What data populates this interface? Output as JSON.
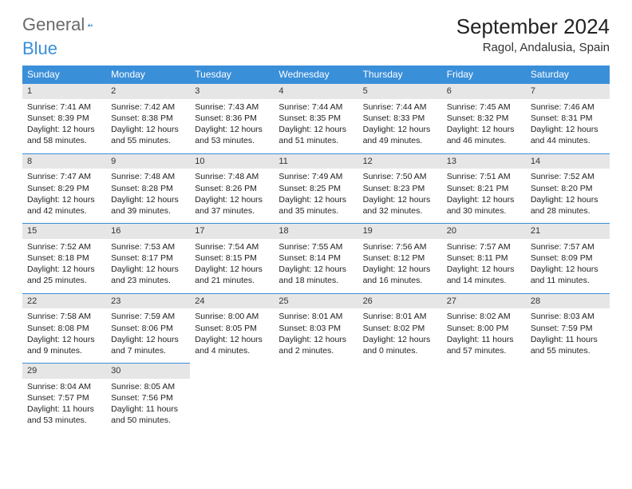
{
  "brand": {
    "part1": "General",
    "part2": "Blue"
  },
  "title": "September 2024",
  "location": "Ragol, Andalusia, Spain",
  "colors": {
    "header_bg": "#3a8fd9",
    "header_text": "#ffffff",
    "daynum_bg": "#e6e6e6",
    "border": "#3a8fd9",
    "logo_gray": "#6a6a6a",
    "logo_blue": "#3a8fd9"
  },
  "weekdays": [
    "Sunday",
    "Monday",
    "Tuesday",
    "Wednesday",
    "Thursday",
    "Friday",
    "Saturday"
  ],
  "weeks": [
    [
      {
        "n": "1",
        "sr": "7:41 AM",
        "ss": "8:39 PM",
        "dl": "12 hours and 58 minutes."
      },
      {
        "n": "2",
        "sr": "7:42 AM",
        "ss": "8:38 PM",
        "dl": "12 hours and 55 minutes."
      },
      {
        "n": "3",
        "sr": "7:43 AM",
        "ss": "8:36 PM",
        "dl": "12 hours and 53 minutes."
      },
      {
        "n": "4",
        "sr": "7:44 AM",
        "ss": "8:35 PM",
        "dl": "12 hours and 51 minutes."
      },
      {
        "n": "5",
        "sr": "7:44 AM",
        "ss": "8:33 PM",
        "dl": "12 hours and 49 minutes."
      },
      {
        "n": "6",
        "sr": "7:45 AM",
        "ss": "8:32 PM",
        "dl": "12 hours and 46 minutes."
      },
      {
        "n": "7",
        "sr": "7:46 AM",
        "ss": "8:31 PM",
        "dl": "12 hours and 44 minutes."
      }
    ],
    [
      {
        "n": "8",
        "sr": "7:47 AM",
        "ss": "8:29 PM",
        "dl": "12 hours and 42 minutes."
      },
      {
        "n": "9",
        "sr": "7:48 AM",
        "ss": "8:28 PM",
        "dl": "12 hours and 39 minutes."
      },
      {
        "n": "10",
        "sr": "7:48 AM",
        "ss": "8:26 PM",
        "dl": "12 hours and 37 minutes."
      },
      {
        "n": "11",
        "sr": "7:49 AM",
        "ss": "8:25 PM",
        "dl": "12 hours and 35 minutes."
      },
      {
        "n": "12",
        "sr": "7:50 AM",
        "ss": "8:23 PM",
        "dl": "12 hours and 32 minutes."
      },
      {
        "n": "13",
        "sr": "7:51 AM",
        "ss": "8:21 PM",
        "dl": "12 hours and 30 minutes."
      },
      {
        "n": "14",
        "sr": "7:52 AM",
        "ss": "8:20 PM",
        "dl": "12 hours and 28 minutes."
      }
    ],
    [
      {
        "n": "15",
        "sr": "7:52 AM",
        "ss": "8:18 PM",
        "dl": "12 hours and 25 minutes."
      },
      {
        "n": "16",
        "sr": "7:53 AM",
        "ss": "8:17 PM",
        "dl": "12 hours and 23 minutes."
      },
      {
        "n": "17",
        "sr": "7:54 AM",
        "ss": "8:15 PM",
        "dl": "12 hours and 21 minutes."
      },
      {
        "n": "18",
        "sr": "7:55 AM",
        "ss": "8:14 PM",
        "dl": "12 hours and 18 minutes."
      },
      {
        "n": "19",
        "sr": "7:56 AM",
        "ss": "8:12 PM",
        "dl": "12 hours and 16 minutes."
      },
      {
        "n": "20",
        "sr": "7:57 AM",
        "ss": "8:11 PM",
        "dl": "12 hours and 14 minutes."
      },
      {
        "n": "21",
        "sr": "7:57 AM",
        "ss": "8:09 PM",
        "dl": "12 hours and 11 minutes."
      }
    ],
    [
      {
        "n": "22",
        "sr": "7:58 AM",
        "ss": "8:08 PM",
        "dl": "12 hours and 9 minutes."
      },
      {
        "n": "23",
        "sr": "7:59 AM",
        "ss": "8:06 PM",
        "dl": "12 hours and 7 minutes."
      },
      {
        "n": "24",
        "sr": "8:00 AM",
        "ss": "8:05 PM",
        "dl": "12 hours and 4 minutes."
      },
      {
        "n": "25",
        "sr": "8:01 AM",
        "ss": "8:03 PM",
        "dl": "12 hours and 2 minutes."
      },
      {
        "n": "26",
        "sr": "8:01 AM",
        "ss": "8:02 PM",
        "dl": "12 hours and 0 minutes."
      },
      {
        "n": "27",
        "sr": "8:02 AM",
        "ss": "8:00 PM",
        "dl": "11 hours and 57 minutes."
      },
      {
        "n": "28",
        "sr": "8:03 AM",
        "ss": "7:59 PM",
        "dl": "11 hours and 55 minutes."
      }
    ],
    [
      {
        "n": "29",
        "sr": "8:04 AM",
        "ss": "7:57 PM",
        "dl": "11 hours and 53 minutes."
      },
      {
        "n": "30",
        "sr": "8:05 AM",
        "ss": "7:56 PM",
        "dl": "11 hours and 50 minutes."
      },
      null,
      null,
      null,
      null,
      null
    ]
  ],
  "labels": {
    "sunrise": "Sunrise: ",
    "sunset": "Sunset: ",
    "daylight": "Daylight: "
  }
}
